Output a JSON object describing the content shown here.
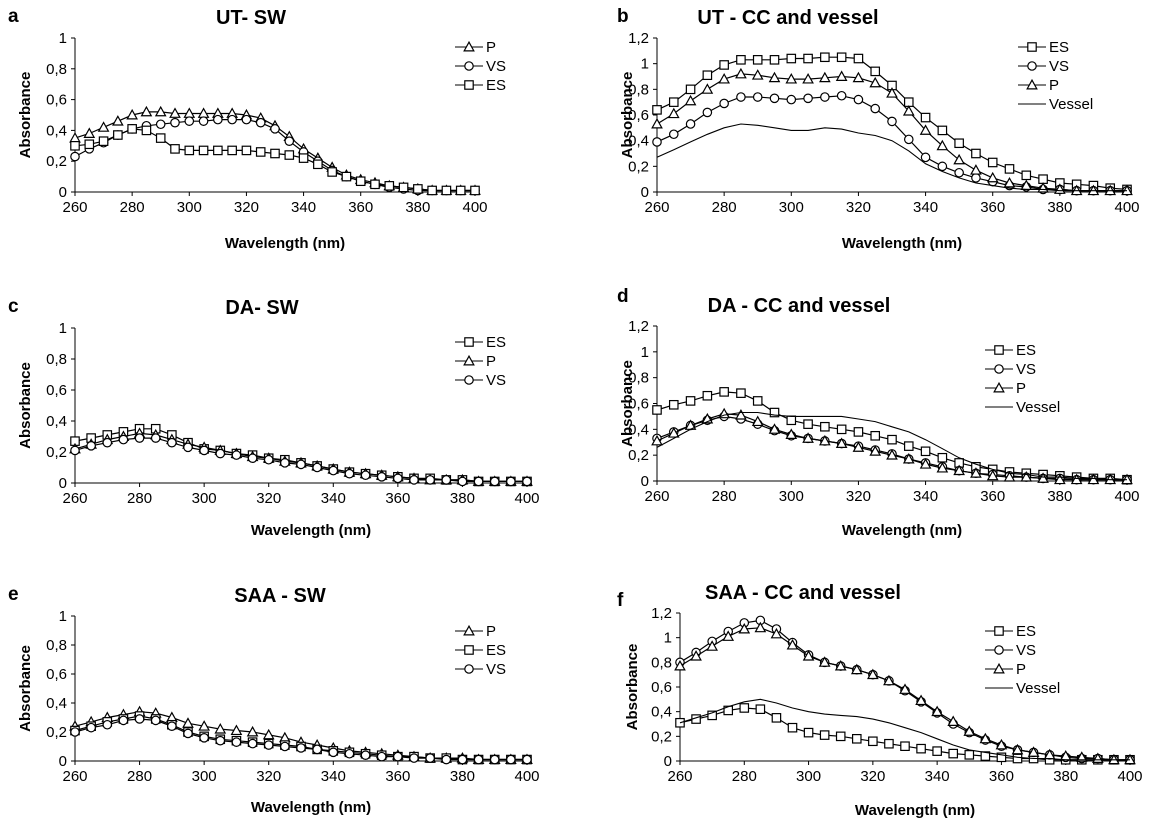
{
  "chart_data": [
    {
      "type": "line",
      "letter": "a",
      "title": "UT- SW",
      "xlabel": "Wavelength (nm)",
      "ylabel": "Absorbance",
      "xlim": [
        260,
        400
      ],
      "ylim": [
        0,
        1
      ],
      "x_ticks": [
        "260",
        "280",
        "300",
        "320",
        "340",
        "360",
        "380",
        "400"
      ],
      "y_ticks": [
        "0",
        "0,2",
        "0,4",
        "0,6",
        "0,8",
        "1"
      ],
      "grid": false,
      "legend_position": "top-right",
      "x": [
        260,
        265,
        270,
        275,
        280,
        285,
        290,
        295,
        300,
        305,
        310,
        315,
        320,
        325,
        330,
        335,
        340,
        345,
        350,
        355,
        360,
        365,
        370,
        375,
        380,
        385,
        390,
        395,
        400
      ],
      "series": [
        {
          "name": "P",
          "marker": "triangle",
          "values": [
            0.35,
            0.38,
            0.42,
            0.46,
            0.5,
            0.52,
            0.52,
            0.51,
            0.51,
            0.51,
            0.51,
            0.51,
            0.5,
            0.48,
            0.43,
            0.36,
            0.28,
            0.22,
            0.16,
            0.11,
            0.08,
            0.06,
            0.04,
            0.03,
            0.02,
            0.01,
            0.01,
            0.01,
            0.01
          ]
        },
        {
          "name": "VS",
          "marker": "circle",
          "values": [
            0.23,
            0.28,
            0.32,
            0.37,
            0.41,
            0.43,
            0.44,
            0.45,
            0.46,
            0.46,
            0.47,
            0.47,
            0.47,
            0.45,
            0.41,
            0.33,
            0.26,
            0.2,
            0.14,
            0.1,
            0.07,
            0.05,
            0.03,
            0.02,
            0.01,
            0.01,
            0.01,
            0.01,
            0.01
          ]
        },
        {
          "name": "ES",
          "marker": "square",
          "values": [
            0.3,
            0.31,
            0.33,
            0.37,
            0.41,
            0.4,
            0.35,
            0.28,
            0.27,
            0.27,
            0.27,
            0.27,
            0.27,
            0.26,
            0.25,
            0.24,
            0.22,
            0.18,
            0.13,
            0.1,
            0.07,
            0.05,
            0.04,
            0.03,
            0.02,
            0.01,
            0.01,
            0.01,
            0.01
          ]
        }
      ]
    },
    {
      "type": "line",
      "letter": "b",
      "title": "UT - CC and vessel",
      "xlabel": "Wavelength (nm)",
      "ylabel": "Absorbance",
      "xlim": [
        260,
        400
      ],
      "ylim": [
        0,
        1.2
      ],
      "x_ticks": [
        "260",
        "280",
        "300",
        "320",
        "340",
        "360",
        "380",
        "400"
      ],
      "y_ticks": [
        "0",
        "0,2",
        "0,4",
        "0,6",
        "0,8",
        "1",
        "1,2"
      ],
      "grid": false,
      "legend_position": "top-right",
      "x": [
        260,
        265,
        270,
        275,
        280,
        285,
        290,
        295,
        300,
        305,
        310,
        315,
        320,
        325,
        330,
        335,
        340,
        345,
        350,
        355,
        360,
        365,
        370,
        375,
        380,
        385,
        390,
        395,
        400
      ],
      "series": [
        {
          "name": "ES",
          "marker": "square",
          "values": [
            0.64,
            0.7,
            0.8,
            0.91,
            0.99,
            1.03,
            1.03,
            1.03,
            1.04,
            1.04,
            1.05,
            1.05,
            1.04,
            0.94,
            0.83,
            0.7,
            0.58,
            0.48,
            0.38,
            0.3,
            0.23,
            0.18,
            0.13,
            0.1,
            0.07,
            0.06,
            0.05,
            0.03,
            0.02
          ]
        },
        {
          "name": "VS",
          "marker": "circle",
          "values": [
            0.39,
            0.45,
            0.53,
            0.62,
            0.69,
            0.74,
            0.74,
            0.73,
            0.72,
            0.73,
            0.74,
            0.75,
            0.72,
            0.65,
            0.55,
            0.41,
            0.27,
            0.2,
            0.15,
            0.11,
            0.08,
            0.05,
            0.04,
            0.02,
            0.02,
            0.01,
            0.01,
            0.01,
            0.01
          ]
        },
        {
          "name": "P",
          "marker": "triangle",
          "values": [
            0.53,
            0.61,
            0.71,
            0.8,
            0.88,
            0.92,
            0.91,
            0.89,
            0.88,
            0.88,
            0.89,
            0.9,
            0.89,
            0.85,
            0.77,
            0.63,
            0.48,
            0.36,
            0.25,
            0.17,
            0.11,
            0.07,
            0.05,
            0.03,
            0.02,
            0.01,
            0.01,
            0.01,
            0.01
          ]
        },
        {
          "name": "Vessel",
          "marker": "none",
          "values": [
            0.27,
            0.33,
            0.39,
            0.45,
            0.5,
            0.53,
            0.52,
            0.5,
            0.48,
            0.48,
            0.5,
            0.49,
            0.46,
            0.44,
            0.4,
            0.32,
            0.22,
            0.16,
            0.11,
            0.07,
            0.05,
            0.03,
            0.02,
            0.02,
            0.01,
            0.01,
            0.01,
            0.01,
            0.01
          ]
        }
      ]
    },
    {
      "type": "line",
      "letter": "c",
      "title": "DA- SW",
      "xlabel": "Wavelength (nm)",
      "ylabel": "Absorbance",
      "xlim": [
        260,
        400
      ],
      "ylim": [
        0,
        1
      ],
      "x_ticks": [
        "260",
        "280",
        "300",
        "320",
        "340",
        "360",
        "380",
        "400"
      ],
      "y_ticks": [
        "0",
        "0,2",
        "0,4",
        "0,6",
        "0,8",
        "1"
      ],
      "grid": false,
      "legend_position": "top-right",
      "x": [
        260,
        265,
        270,
        275,
        280,
        285,
        290,
        295,
        300,
        305,
        310,
        315,
        320,
        325,
        330,
        335,
        340,
        345,
        350,
        355,
        360,
        365,
        370,
        375,
        380,
        385,
        390,
        395,
        400
      ],
      "series": [
        {
          "name": "ES",
          "marker": "square",
          "values": [
            0.27,
            0.29,
            0.31,
            0.33,
            0.35,
            0.35,
            0.31,
            0.26,
            0.22,
            0.21,
            0.19,
            0.18,
            0.16,
            0.15,
            0.13,
            0.11,
            0.09,
            0.07,
            0.06,
            0.05,
            0.04,
            0.03,
            0.03,
            0.02,
            0.02,
            0.01,
            0.01,
            0.01,
            0.01
          ]
        },
        {
          "name": "P",
          "marker": "triangle",
          "values": [
            0.22,
            0.25,
            0.28,
            0.3,
            0.32,
            0.31,
            0.28,
            0.25,
            0.23,
            0.21,
            0.19,
            0.17,
            0.16,
            0.14,
            0.13,
            0.11,
            0.09,
            0.07,
            0.06,
            0.05,
            0.04,
            0.03,
            0.02,
            0.02,
            0.02,
            0.01,
            0.01,
            0.01,
            0.01
          ]
        },
        {
          "name": "VS",
          "marker": "circle",
          "values": [
            0.21,
            0.24,
            0.26,
            0.28,
            0.29,
            0.29,
            0.26,
            0.23,
            0.21,
            0.19,
            0.18,
            0.16,
            0.15,
            0.13,
            0.12,
            0.1,
            0.08,
            0.06,
            0.05,
            0.04,
            0.03,
            0.02,
            0.02,
            0.02,
            0.01,
            0.01,
            0.01,
            0.01,
            0.01
          ]
        }
      ]
    },
    {
      "type": "line",
      "letter": "d",
      "title": "DA - CC and vessel",
      "xlabel": "Wavelength (nm)",
      "ylabel": "Absorbance",
      "xlim": [
        260,
        400
      ],
      "ylim": [
        0,
        1.2
      ],
      "x_ticks": [
        "260",
        "280",
        "300",
        "320",
        "340",
        "360",
        "380",
        "400"
      ],
      "y_ticks": [
        "0",
        "0,2",
        "0,4",
        "0,6",
        "0,8",
        "1",
        "1,2"
      ],
      "grid": false,
      "legend_position": "top-right",
      "x": [
        260,
        265,
        270,
        275,
        280,
        285,
        290,
        295,
        300,
        305,
        310,
        315,
        320,
        325,
        330,
        335,
        340,
        345,
        350,
        355,
        360,
        365,
        370,
        375,
        380,
        385,
        390,
        395,
        400
      ],
      "series": [
        {
          "name": "ES",
          "marker": "square",
          "values": [
            0.55,
            0.59,
            0.62,
            0.66,
            0.69,
            0.68,
            0.62,
            0.53,
            0.47,
            0.44,
            0.42,
            0.4,
            0.38,
            0.35,
            0.32,
            0.27,
            0.23,
            0.18,
            0.14,
            0.11,
            0.09,
            0.07,
            0.06,
            0.05,
            0.04,
            0.03,
            0.02,
            0.02,
            0.01
          ]
        },
        {
          "name": "VS",
          "marker": "circle",
          "values": [
            0.33,
            0.38,
            0.43,
            0.47,
            0.5,
            0.48,
            0.44,
            0.39,
            0.35,
            0.33,
            0.31,
            0.29,
            0.27,
            0.24,
            0.21,
            0.17,
            0.14,
            0.11,
            0.08,
            0.06,
            0.05,
            0.04,
            0.03,
            0.02,
            0.02,
            0.01,
            0.01,
            0.01,
            0.01
          ]
        },
        {
          "name": "P",
          "marker": "triangle",
          "values": [
            0.31,
            0.37,
            0.43,
            0.48,
            0.52,
            0.51,
            0.46,
            0.4,
            0.36,
            0.33,
            0.31,
            0.29,
            0.26,
            0.23,
            0.2,
            0.17,
            0.13,
            0.1,
            0.08,
            0.06,
            0.04,
            0.03,
            0.03,
            0.02,
            0.01,
            0.01,
            0.01,
            0.01,
            0.01
          ]
        },
        {
          "name": "Vessel",
          "marker": "none",
          "values": [
            0.26,
            0.33,
            0.4,
            0.46,
            0.51,
            0.53,
            0.53,
            0.51,
            0.5,
            0.5,
            0.5,
            0.5,
            0.48,
            0.46,
            0.42,
            0.38,
            0.32,
            0.25,
            0.18,
            0.13,
            0.09,
            0.06,
            0.05,
            0.03,
            0.03,
            0.02,
            0.02,
            0.01,
            0.01
          ]
        }
      ]
    },
    {
      "type": "line",
      "letter": "e",
      "title": "SAA - SW",
      "xlabel": "Wavelength (nm)",
      "ylabel": "Absorbance",
      "xlim": [
        260,
        400
      ],
      "ylim": [
        0,
        1
      ],
      "x_ticks": [
        "260",
        "280",
        "300",
        "320",
        "340",
        "360",
        "380",
        "400"
      ],
      "y_ticks": [
        "0",
        "0,2",
        "0,4",
        "0,6",
        "0,8",
        "1"
      ],
      "grid": false,
      "legend_position": "top-right",
      "x": [
        260,
        265,
        270,
        275,
        280,
        285,
        290,
        295,
        300,
        305,
        310,
        315,
        320,
        325,
        330,
        335,
        340,
        345,
        350,
        355,
        360,
        365,
        370,
        375,
        380,
        385,
        390,
        395,
        400
      ],
      "series": [
        {
          "name": "P",
          "marker": "triangle",
          "values": [
            0.24,
            0.27,
            0.3,
            0.32,
            0.34,
            0.33,
            0.3,
            0.26,
            0.24,
            0.22,
            0.21,
            0.2,
            0.18,
            0.16,
            0.13,
            0.11,
            0.09,
            0.07,
            0.06,
            0.05,
            0.04,
            0.03,
            0.02,
            0.02,
            0.02,
            0.01,
            0.01,
            0.01,
            0.01
          ]
        },
        {
          "name": "ES",
          "marker": "square",
          "values": [
            0.21,
            0.24,
            0.27,
            0.29,
            0.31,
            0.29,
            0.25,
            0.2,
            0.17,
            0.15,
            0.14,
            0.13,
            0.12,
            0.11,
            0.1,
            0.08,
            0.07,
            0.06,
            0.05,
            0.04,
            0.03,
            0.03,
            0.02,
            0.02,
            0.01,
            0.01,
            0.01,
            0.01,
            0.01
          ]
        },
        {
          "name": "VS",
          "marker": "circle",
          "values": [
            0.2,
            0.23,
            0.25,
            0.28,
            0.29,
            0.28,
            0.24,
            0.19,
            0.16,
            0.14,
            0.13,
            0.12,
            0.11,
            0.1,
            0.09,
            0.08,
            0.06,
            0.05,
            0.04,
            0.03,
            0.03,
            0.02,
            0.02,
            0.01,
            0.01,
            0.01,
            0.01,
            0.01,
            0.01
          ]
        }
      ]
    },
    {
      "type": "line",
      "letter": "f",
      "title": "SAA - CC and vessel",
      "xlabel": "Wavelength (nm)",
      "ylabel": "Absorbance",
      "xlim": [
        260,
        400
      ],
      "ylim": [
        0,
        1.2
      ],
      "x_ticks": [
        "260",
        "280",
        "300",
        "320",
        "340",
        "360",
        "380",
        "400"
      ],
      "y_ticks": [
        "0",
        "0,2",
        "0,4",
        "0,6",
        "0,8",
        "1",
        "1,2"
      ],
      "grid": false,
      "legend_position": "top-right",
      "x": [
        260,
        265,
        270,
        275,
        280,
        285,
        290,
        295,
        300,
        305,
        310,
        315,
        320,
        325,
        330,
        335,
        340,
        345,
        350,
        355,
        360,
        365,
        370,
        375,
        380,
        385,
        390,
        395,
        400
      ],
      "series": [
        {
          "name": "ES",
          "marker": "square",
          "values": [
            0.31,
            0.34,
            0.37,
            0.41,
            0.43,
            0.42,
            0.35,
            0.27,
            0.23,
            0.21,
            0.2,
            0.18,
            0.16,
            0.14,
            0.12,
            0.1,
            0.08,
            0.06,
            0.05,
            0.04,
            0.03,
            0.02,
            0.02,
            0.01,
            0.01,
            0.01,
            0.01,
            0.01,
            0.01
          ]
        },
        {
          "name": "VS",
          "marker": "circle",
          "values": [
            0.8,
            0.88,
            0.97,
            1.05,
            1.12,
            1.14,
            1.07,
            0.96,
            0.86,
            0.8,
            0.77,
            0.74,
            0.7,
            0.65,
            0.57,
            0.48,
            0.39,
            0.3,
            0.23,
            0.17,
            0.12,
            0.09,
            0.07,
            0.05,
            0.03,
            0.02,
            0.02,
            0.01,
            0.01
          ]
        },
        {
          "name": "P",
          "marker": "triangle",
          "values": [
            0.77,
            0.85,
            0.93,
            1.01,
            1.07,
            1.08,
            1.03,
            0.94,
            0.85,
            0.8,
            0.77,
            0.74,
            0.7,
            0.65,
            0.58,
            0.49,
            0.4,
            0.32,
            0.24,
            0.18,
            0.13,
            0.09,
            0.07,
            0.05,
            0.04,
            0.03,
            0.02,
            0.01,
            0.01
          ]
        },
        {
          "name": "Vessel",
          "marker": "none",
          "values": [
            0.31,
            0.35,
            0.39,
            0.44,
            0.48,
            0.5,
            0.47,
            0.43,
            0.4,
            0.38,
            0.37,
            0.36,
            0.34,
            0.31,
            0.27,
            0.23,
            0.18,
            0.13,
            0.09,
            0.07,
            0.05,
            0.03,
            0.02,
            0.02,
            0.01,
            0.01,
            0.01,
            0.01,
            0.01
          ]
        }
      ]
    }
  ]
}
